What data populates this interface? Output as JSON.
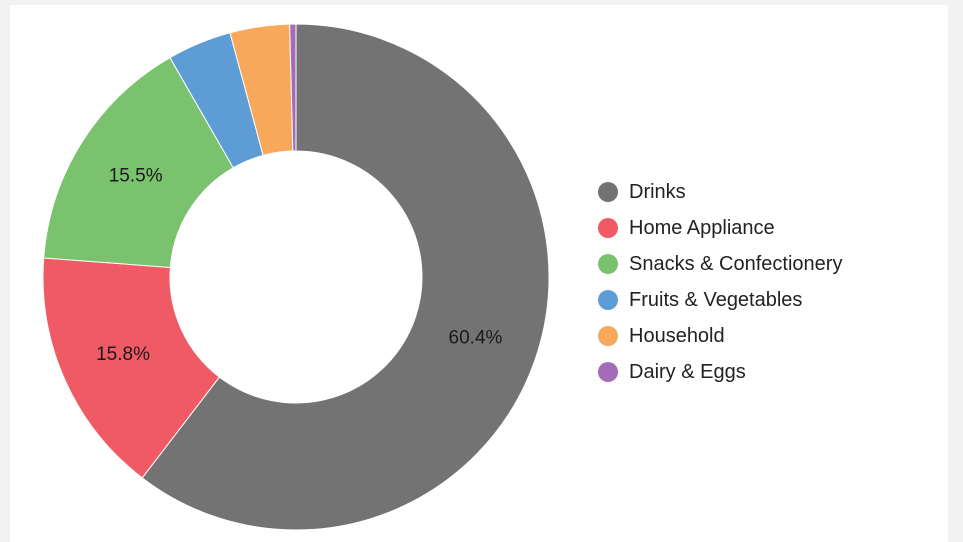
{
  "chart_data": {
    "type": "pie",
    "variant": "donut",
    "categories": [
      "Drinks",
      "Home Appliance",
      "Snacks & Confectionery",
      "Fruits & Vegetables",
      "Household",
      "Dairy & Eggs"
    ],
    "values": [
      60.4,
      15.8,
      15.5,
      4.1,
      3.8,
      0.4
    ],
    "data_labels": [
      "60.4%",
      "15.8%",
      "15.5%",
      "",
      "",
      ""
    ],
    "colors": [
      "#737373",
      "#f05a64",
      "#7ac26d",
      "#5d9cd4",
      "#f8a85a",
      "#a46bb8"
    ],
    "title": "",
    "legend_position": "right"
  }
}
